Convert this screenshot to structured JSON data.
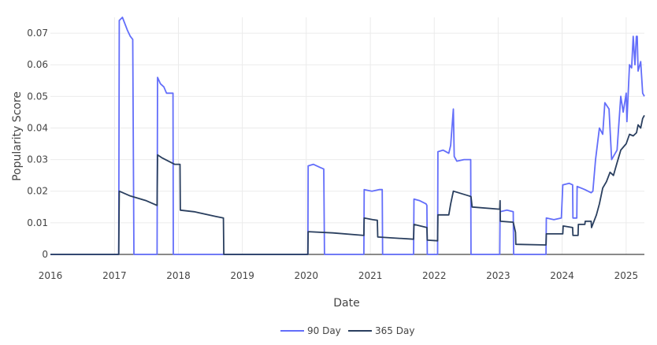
{
  "chart_data": {
    "type": "line",
    "title": "",
    "xlabel": "Date",
    "ylabel": "Popularity Score",
    "xlim": [
      "2016-01-01",
      "2025-04-15"
    ],
    "ylim": [
      0,
      0.075
    ],
    "x_ticks": [
      "2016",
      "2017",
      "2018",
      "2019",
      "2020",
      "2021",
      "2022",
      "2023",
      "2024",
      "2025"
    ],
    "y_ticks": [
      "0",
      "0.01",
      "0.02",
      "0.03",
      "0.04",
      "0.05",
      "0.06",
      "0.07"
    ],
    "grid": true,
    "legend_position": "bottom-center",
    "series": [
      {
        "name": "90 Day",
        "color": "#636efa",
        "points": [
          [
            "2016-01-01",
            0
          ],
          [
            "2017-01-25",
            0
          ],
          [
            "2017-01-28",
            0.074
          ],
          [
            "2017-02-15",
            0.075
          ],
          [
            "2017-03-01",
            0.073
          ],
          [
            "2017-03-15",
            0.071
          ],
          [
            "2017-04-01",
            0.069
          ],
          [
            "2017-04-15",
            0.068
          ],
          [
            "2017-04-22",
            0
          ],
          [
            "2017-09-01",
            0
          ],
          [
            "2017-09-04",
            0.056
          ],
          [
            "2017-09-20",
            0.054
          ],
          [
            "2017-10-10",
            0.053
          ],
          [
            "2017-10-25",
            0.051
          ],
          [
            "2017-11-20",
            0.051
          ],
          [
            "2017-12-01",
            0.051
          ],
          [
            "2017-12-03",
            0
          ],
          [
            "2020-01-10",
            0
          ],
          [
            "2020-01-12",
            0.028
          ],
          [
            "2020-02-10",
            0.0285
          ],
          [
            "2020-03-20",
            0.0275
          ],
          [
            "2020-04-10",
            0.027
          ],
          [
            "2020-04-14",
            0
          ],
          [
            "2020-11-25",
            0
          ],
          [
            "2020-11-27",
            0.0205
          ],
          [
            "2021-01-10",
            0.02
          ],
          [
            "2021-02-20",
            0.0205
          ],
          [
            "2021-03-10",
            0.0205
          ],
          [
            "2021-03-12",
            0
          ],
          [
            "2021-09-05",
            0
          ],
          [
            "2021-09-07",
            0.0175
          ],
          [
            "2021-10-10",
            0.017
          ],
          [
            "2021-11-15",
            0.016
          ],
          [
            "2021-11-20",
            0.0155
          ],
          [
            "2021-11-22",
            0
          ],
          [
            "2022-01-20",
            0
          ],
          [
            "2022-01-22",
            0.0325
          ],
          [
            "2022-02-20",
            0.033
          ],
          [
            "2022-03-25",
            0.032
          ],
          [
            "2022-04-05",
            0.0345
          ],
          [
            "2022-04-20",
            0.046
          ],
          [
            "2022-04-25",
            0.031
          ],
          [
            "2022-05-10",
            0.0295
          ],
          [
            "2022-06-20",
            0.03
          ],
          [
            "2022-07-28",
            0.03
          ],
          [
            "2022-07-30",
            0
          ],
          [
            "2023-01-10",
            0
          ],
          [
            "2023-01-12",
            0.0135
          ],
          [
            "2023-02-20",
            0.014
          ],
          [
            "2023-03-28",
            0.0135
          ],
          [
            "2023-03-30",
            0
          ],
          [
            "2023-10-01",
            0
          ],
          [
            "2023-10-03",
            0.0115
          ],
          [
            "2023-11-15",
            0.011
          ],
          [
            "2023-12-28",
            0.0115
          ],
          [
            "2024-01-05",
            0.022
          ],
          [
            "2024-02-10",
            0.0225
          ],
          [
            "2024-03-01",
            0.022
          ],
          [
            "2024-03-03",
            0.0115
          ],
          [
            "2024-03-25",
            0.0115
          ],
          [
            "2024-03-27",
            0.0215
          ],
          [
            "2024-05-10",
            0.0205
          ],
          [
            "2024-06-15",
            0.0195
          ],
          [
            "2024-06-25",
            0.02
          ],
          [
            "2024-07-10",
            0.03
          ],
          [
            "2024-08-01",
            0.04
          ],
          [
            "2024-08-20",
            0.038
          ],
          [
            "2024-09-01",
            0.048
          ],
          [
            "2024-09-25",
            0.046
          ],
          [
            "2024-10-10",
            0.03
          ],
          [
            "2024-11-10",
            0.033
          ],
          [
            "2024-12-01",
            0.05
          ],
          [
            "2024-12-15",
            0.045
          ],
          [
            "2025-01-01",
            0.051
          ],
          [
            "2025-01-05",
            0.042
          ],
          [
            "2025-01-20",
            0.06
          ],
          [
            "2025-02-01",
            0.059
          ],
          [
            "2025-02-10",
            0.069
          ],
          [
            "2025-02-20",
            0.06
          ],
          [
            "2025-02-28",
            0.069
          ],
          [
            "2025-03-05",
            0.069
          ],
          [
            "2025-03-10",
            0.058
          ],
          [
            "2025-03-25",
            0.061
          ],
          [
            "2025-04-05",
            0.051
          ],
          [
            "2025-04-15",
            0.05
          ]
        ]
      },
      {
        "name": "365 Day",
        "color": "#2a3f5f",
        "points": [
          [
            "2016-01-01",
            0
          ],
          [
            "2017-01-25",
            0
          ],
          [
            "2017-01-28",
            0.02
          ],
          [
            "2017-04-01",
            0.0185
          ],
          [
            "2017-07-01",
            0.017
          ],
          [
            "2017-09-01",
            0.0155
          ],
          [
            "2017-09-04",
            0.0315
          ],
          [
            "2017-10-01",
            0.0305
          ],
          [
            "2017-12-10",
            0.0285
          ],
          [
            "2018-01-10",
            0.0285
          ],
          [
            "2018-01-12",
            0.014
          ],
          [
            "2018-04-01",
            0.0135
          ],
          [
            "2018-08-01",
            0.012
          ],
          [
            "2018-09-15",
            0.0115
          ],
          [
            "2018-09-17",
            0
          ],
          [
            "2020-01-10",
            0
          ],
          [
            "2020-01-12",
            0.0072
          ],
          [
            "2020-06-01",
            0.0068
          ],
          [
            "2020-11-25",
            0.006
          ],
          [
            "2020-11-27",
            0.0115
          ],
          [
            "2021-01-15",
            0.011
          ],
          [
            "2021-02-10",
            0.0108
          ],
          [
            "2021-02-12",
            0.0055
          ],
          [
            "2021-09-05",
            0.0048
          ],
          [
            "2021-09-07",
            0.0095
          ],
          [
            "2021-11-20",
            0.0085
          ],
          [
            "2021-11-22",
            0.0045
          ],
          [
            "2022-01-20",
            0.0043
          ],
          [
            "2022-01-22",
            0.0125
          ],
          [
            "2022-03-25",
            0.0125
          ],
          [
            "2022-04-05",
            0.016
          ],
          [
            "2022-04-20",
            0.02
          ],
          [
            "2022-07-20",
            0.0185
          ],
          [
            "2022-07-30",
            0.0183
          ],
          [
            "2022-08-05",
            0.015
          ],
          [
            "2023-01-10",
            0.0143
          ],
          [
            "2023-01-12",
            0.017
          ],
          [
            "2023-01-13",
            0.0105
          ],
          [
            "2023-03-28",
            0.0102
          ],
          [
            "2023-04-10",
            0.007
          ],
          [
            "2023-04-12",
            0.0032
          ],
          [
            "2023-10-01",
            0.003
          ],
          [
            "2023-10-03",
            0.0065
          ],
          [
            "2024-01-05",
            0.0065
          ],
          [
            "2024-01-07",
            0.009
          ],
          [
            "2024-03-01",
            0.0085
          ],
          [
            "2024-03-03",
            0.006
          ],
          [
            "2024-04-01",
            0.006
          ],
          [
            "2024-04-03",
            0.0095
          ],
          [
            "2024-05-10",
            0.0095
          ],
          [
            "2024-05-12",
            0.0105
          ],
          [
            "2024-06-15",
            0.0105
          ],
          [
            "2024-06-17",
            0.0085
          ],
          [
            "2024-07-15",
            0.0125
          ],
          [
            "2024-08-01",
            0.016
          ],
          [
            "2024-08-20",
            0.021
          ],
          [
            "2024-09-10",
            0.023
          ],
          [
            "2024-10-01",
            0.026
          ],
          [
            "2024-10-20",
            0.025
          ],
          [
            "2024-11-10",
            0.029
          ],
          [
            "2024-12-01",
            0.033
          ],
          [
            "2025-01-01",
            0.035
          ],
          [
            "2025-01-20",
            0.038
          ],
          [
            "2025-02-10",
            0.0375
          ],
          [
            "2025-03-01",
            0.0385
          ],
          [
            "2025-03-10",
            0.041
          ],
          [
            "2025-03-25",
            0.04
          ],
          [
            "2025-04-05",
            0.043
          ],
          [
            "2025-04-15",
            0.044
          ]
        ]
      }
    ]
  }
}
